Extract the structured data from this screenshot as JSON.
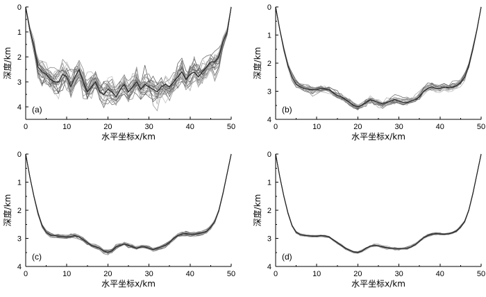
{
  "chart_data": [
    {
      "type": "line",
      "panel_label": "(a)",
      "xlabel": "水平坐标x/km",
      "ylabel": "深度/km",
      "xlim": [
        0,
        50
      ],
      "ylim": [
        0,
        4.5
      ],
      "xticks": [
        "0",
        "10",
        "20",
        "30",
        "40",
        "50"
      ],
      "yticks": [
        "0",
        "1",
        "2",
        "3",
        "4"
      ],
      "inverted_y": true,
      "grid": false,
      "noise": 0.45,
      "series": [
        {
          "x": [
            0,
            1,
            2,
            3,
            4,
            5,
            6,
            7,
            8,
            9,
            10,
            11,
            12,
            13,
            14,
            15,
            16,
            17,
            18,
            19,
            20,
            21,
            22,
            23,
            24,
            25,
            26,
            27,
            28,
            29,
            30,
            31,
            32,
            33,
            34,
            35,
            36,
            37,
            38,
            39,
            40,
            41,
            42,
            43,
            44,
            45,
            46,
            47,
            48,
            49,
            50
          ],
          "y": [
            0.0,
            0.9,
            1.6,
            2.4,
            2.6,
            2.7,
            2.9,
            3.0,
            3.0,
            2.7,
            2.8,
            3.2,
            2.8,
            2.5,
            3.0,
            3.4,
            3.2,
            3.0,
            3.4,
            3.5,
            3.3,
            3.4,
            3.6,
            3.3,
            3.1,
            3.4,
            3.2,
            3.0,
            3.3,
            3.1,
            3.2,
            3.3,
            3.4,
            3.2,
            3.1,
            3.2,
            3.0,
            2.8,
            2.6,
            2.9,
            2.7,
            2.6,
            2.8,
            2.6,
            2.4,
            2.2,
            2.2,
            2.0,
            1.4,
            1.0,
            0.0
          ]
        }
      ]
    },
    {
      "type": "line",
      "panel_label": "(b)",
      "xlabel": "水平坐标x/km",
      "ylabel": "深度/km",
      "xlim": [
        0,
        50
      ],
      "ylim": [
        0,
        4
      ],
      "xticks": [
        "0",
        "10",
        "20",
        "30",
        "40",
        "50"
      ],
      "yticks": [
        "0",
        "1",
        "2",
        "3",
        "4"
      ],
      "inverted_y": true,
      "grid": false,
      "noise": 0.12,
      "series": [
        {
          "x": [
            0,
            1,
            2,
            3,
            4,
            5,
            6,
            7,
            8,
            9,
            10,
            11,
            12,
            13,
            14,
            15,
            16,
            17,
            18,
            19,
            20,
            21,
            22,
            23,
            24,
            25,
            26,
            27,
            28,
            29,
            30,
            31,
            32,
            33,
            34,
            35,
            36,
            37,
            38,
            39,
            40,
            41,
            42,
            43,
            44,
            45,
            46,
            47,
            48,
            49,
            50
          ],
          "y": [
            0.0,
            0.8,
            1.5,
            2.1,
            2.5,
            2.75,
            2.85,
            2.9,
            2.92,
            2.95,
            2.93,
            2.9,
            2.92,
            2.95,
            3.05,
            3.15,
            3.2,
            3.3,
            3.4,
            3.5,
            3.55,
            3.5,
            3.4,
            3.3,
            3.35,
            3.4,
            3.45,
            3.4,
            3.35,
            3.3,
            3.35,
            3.4,
            3.4,
            3.35,
            3.3,
            3.2,
            3.0,
            2.9,
            2.85,
            2.9,
            2.9,
            2.85,
            2.88,
            2.85,
            2.8,
            2.7,
            2.5,
            2.1,
            1.5,
            0.8,
            0.0
          ]
        }
      ]
    },
    {
      "type": "line",
      "panel_label": "(c)",
      "xlabel": "水平坐标x/km",
      "ylabel": "深度/km",
      "xlim": [
        0,
        50
      ],
      "ylim": [
        0,
        4
      ],
      "xticks": [
        "0",
        "10",
        "20",
        "30",
        "40",
        "50"
      ],
      "yticks": [
        "0",
        "1",
        "2",
        "3",
        "4"
      ],
      "inverted_y": true,
      "grid": false,
      "noise": 0.06,
      "series": [
        {
          "x": [
            0,
            1,
            2,
            3,
            4,
            5,
            6,
            7,
            8,
            9,
            10,
            11,
            12,
            13,
            14,
            15,
            16,
            17,
            18,
            19,
            20,
            21,
            22,
            23,
            24,
            25,
            26,
            27,
            28,
            29,
            30,
            31,
            32,
            33,
            34,
            35,
            36,
            37,
            38,
            39,
            40,
            41,
            42,
            43,
            44,
            45,
            46,
            47,
            48,
            49,
            50
          ],
          "y": [
            0.0,
            0.8,
            1.5,
            2.1,
            2.55,
            2.78,
            2.88,
            2.9,
            2.92,
            2.93,
            2.95,
            2.93,
            2.9,
            2.95,
            3.05,
            3.15,
            3.25,
            3.3,
            3.35,
            3.45,
            3.5,
            3.45,
            3.3,
            3.25,
            3.2,
            3.25,
            3.3,
            3.35,
            3.3,
            3.3,
            3.35,
            3.4,
            3.35,
            3.3,
            3.25,
            3.15,
            3.0,
            2.9,
            2.85,
            2.83,
            2.85,
            2.85,
            2.83,
            2.8,
            2.75,
            2.6,
            2.4,
            2.0,
            1.4,
            0.7,
            0.0
          ]
        }
      ]
    },
    {
      "type": "line",
      "panel_label": "(d)",
      "xlabel": "水平坐标x/km",
      "ylabel": "深度/km",
      "xlim": [
        0,
        50
      ],
      "ylim": [
        0,
        4
      ],
      "xticks": [
        "0",
        "10",
        "20",
        "30",
        "40",
        "50"
      ],
      "yticks": [
        "0",
        "1",
        "2",
        "3",
        "4"
      ],
      "inverted_y": true,
      "grid": false,
      "noise": 0.035,
      "series": [
        {
          "x": [
            0,
            1,
            2,
            3,
            4,
            5,
            6,
            7,
            8,
            9,
            10,
            11,
            12,
            13,
            14,
            15,
            16,
            17,
            18,
            19,
            20,
            21,
            22,
            23,
            24,
            25,
            26,
            27,
            28,
            29,
            30,
            31,
            32,
            33,
            34,
            35,
            36,
            37,
            38,
            39,
            40,
            41,
            42,
            43,
            44,
            45,
            46,
            47,
            48,
            49,
            50
          ],
          "y": [
            0.0,
            0.8,
            1.5,
            2.1,
            2.55,
            2.78,
            2.87,
            2.9,
            2.91,
            2.92,
            2.92,
            2.9,
            2.91,
            2.95,
            3.05,
            3.15,
            3.25,
            3.35,
            3.42,
            3.48,
            3.5,
            3.45,
            3.35,
            3.28,
            3.24,
            3.26,
            3.3,
            3.33,
            3.35,
            3.36,
            3.37,
            3.36,
            3.35,
            3.3,
            3.22,
            3.1,
            2.98,
            2.9,
            2.85,
            2.83,
            2.84,
            2.85,
            2.84,
            2.8,
            2.74,
            2.6,
            2.4,
            2.0,
            1.4,
            0.7,
            0.0
          ]
        }
      ]
    }
  ]
}
